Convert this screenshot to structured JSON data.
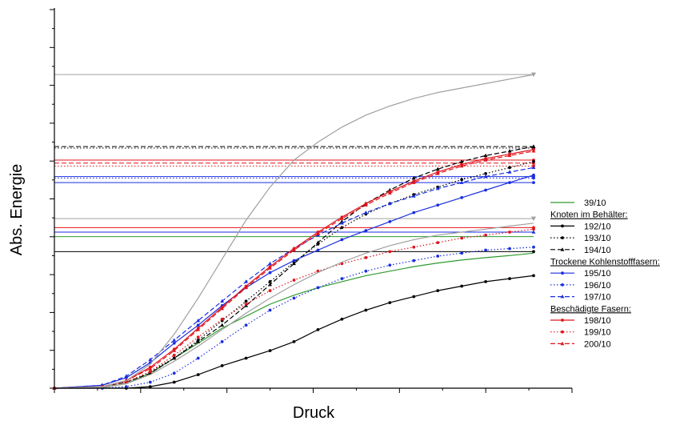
{
  "chart_data": {
    "type": "line",
    "xlabel": "Druck",
    "ylabel": "Abs. Energie",
    "xlim": [
      0,
      1
    ],
    "ylim": [
      0,
      1
    ],
    "x_tick_count": 13,
    "y_tick_count": 21,
    "tick_labels_shown": false,
    "grid": false,
    "legend_position": "right",
    "legend": [
      {
        "kind": "series",
        "label": "39/10",
        "series": 0
      },
      {
        "kind": "heading",
        "label": "Knoten im Behälter:"
      },
      {
        "kind": "series",
        "label": "192/10",
        "series": 1
      },
      {
        "kind": "series",
        "label": "193/10",
        "series": 2
      },
      {
        "kind": "series",
        "label": "194/10",
        "series": 3
      },
      {
        "kind": "heading",
        "label": "Trockene Kohlenstofffasern:"
      },
      {
        "kind": "series",
        "label": "195/10",
        "series": 4
      },
      {
        "kind": "series",
        "label": "196/10",
        "series": 5
      },
      {
        "kind": "series",
        "label": "197/10",
        "series": 6
      },
      {
        "kind": "heading",
        "label": "Beschädigte Fasern:"
      },
      {
        "kind": "series",
        "label": "198/10",
        "series": 7
      },
      {
        "kind": "series",
        "label": "199/10",
        "series": 8
      },
      {
        "kind": "series",
        "label": "200/10",
        "series": 9
      }
    ],
    "series": [
      {
        "name": "39/10",
        "color": "#2e9a2e",
        "dash": "solid",
        "marker": "none",
        "points": [
          [
            0.0,
            0.0
          ],
          [
            0.1,
            0.002
          ],
          [
            0.15,
            0.015
          ],
          [
            0.2,
            0.05
          ],
          [
            0.25,
            0.1
          ],
          [
            0.3,
            0.15
          ],
          [
            0.35,
            0.2
          ],
          [
            0.4,
            0.24
          ],
          [
            0.45,
            0.28
          ],
          [
            0.5,
            0.31
          ],
          [
            0.55,
            0.335
          ],
          [
            0.6,
            0.355
          ],
          [
            0.65,
            0.375
          ],
          [
            0.7,
            0.39
          ],
          [
            0.75,
            0.405
          ],
          [
            0.8,
            0.417
          ],
          [
            0.85,
            0.427
          ],
          [
            0.9,
            0.435
          ],
          [
            0.95,
            0.442
          ],
          [
            1.0,
            0.45
          ]
        ]
      },
      {
        "name": "192/10",
        "color": "#000000",
        "dash": "solid",
        "marker": "circle",
        "points": [
          [
            0.0,
            0.0
          ],
          [
            0.15,
            0.0
          ],
          [
            0.2,
            0.005
          ],
          [
            0.25,
            0.02
          ],
          [
            0.3,
            0.045
          ],
          [
            0.35,
            0.075
          ],
          [
            0.4,
            0.1
          ],
          [
            0.45,
            0.125
          ],
          [
            0.5,
            0.155
          ],
          [
            0.55,
            0.195
          ],
          [
            0.6,
            0.23
          ],
          [
            0.65,
            0.26
          ],
          [
            0.7,
            0.285
          ],
          [
            0.75,
            0.305
          ],
          [
            0.8,
            0.325
          ],
          [
            0.85,
            0.34
          ],
          [
            0.9,
            0.355
          ],
          [
            0.95,
            0.365
          ],
          [
            1.0,
            0.375
          ]
        ]
      },
      {
        "name": "193/10",
        "color": "#000000",
        "dash": "dotted",
        "marker": "circle",
        "points": [
          [
            0.0,
            0.0
          ],
          [
            0.1,
            0.005
          ],
          [
            0.15,
            0.02
          ],
          [
            0.2,
            0.055
          ],
          [
            0.25,
            0.1
          ],
          [
            0.3,
            0.16
          ],
          [
            0.35,
            0.225
          ],
          [
            0.4,
            0.29
          ],
          [
            0.45,
            0.355
          ],
          [
            0.5,
            0.42
          ],
          [
            0.55,
            0.48
          ],
          [
            0.6,
            0.535
          ],
          [
            0.65,
            0.58
          ],
          [
            0.7,
            0.615
          ],
          [
            0.75,
            0.645
          ],
          [
            0.8,
            0.67
          ],
          [
            0.85,
            0.695
          ],
          [
            0.9,
            0.715
          ],
          [
            0.95,
            0.735
          ],
          [
            1.0,
            0.755
          ]
        ]
      },
      {
        "name": "194/10",
        "color": "#000000",
        "dash": "dashed",
        "marker": "triangle",
        "points": [
          [
            0.0,
            0.0
          ],
          [
            0.1,
            0.005
          ],
          [
            0.15,
            0.02
          ],
          [
            0.2,
            0.05
          ],
          [
            0.25,
            0.1
          ],
          [
            0.3,
            0.155
          ],
          [
            0.35,
            0.21
          ],
          [
            0.4,
            0.275
          ],
          [
            0.45,
            0.345
          ],
          [
            0.5,
            0.415
          ],
          [
            0.55,
            0.485
          ],
          [
            0.6,
            0.555
          ],
          [
            0.65,
            0.615
          ],
          [
            0.7,
            0.66
          ],
          [
            0.75,
            0.7
          ],
          [
            0.8,
            0.73
          ],
          [
            0.85,
            0.755
          ],
          [
            0.9,
            0.775
          ],
          [
            0.95,
            0.79
          ],
          [
            1.0,
            0.805
          ]
        ]
      },
      {
        "name": "195/10",
        "color": "#1a2ee0",
        "dash": "solid",
        "marker": "circle",
        "points": [
          [
            0.0,
            0.0
          ],
          [
            0.1,
            0.01
          ],
          [
            0.15,
            0.035
          ],
          [
            0.2,
            0.085
          ],
          [
            0.25,
            0.15
          ],
          [
            0.3,
            0.21
          ],
          [
            0.35,
            0.275
          ],
          [
            0.4,
            0.335
          ],
          [
            0.45,
            0.385
          ],
          [
            0.5,
            0.425
          ],
          [
            0.55,
            0.46
          ],
          [
            0.6,
            0.495
          ],
          [
            0.65,
            0.525
          ],
          [
            0.7,
            0.555
          ],
          [
            0.75,
            0.585
          ],
          [
            0.8,
            0.61
          ],
          [
            0.85,
            0.635
          ],
          [
            0.9,
            0.66
          ],
          [
            0.95,
            0.685
          ],
          [
            1.0,
            0.71
          ]
        ]
      },
      {
        "name": "196/10",
        "color": "#1a2ee0",
        "dash": "dotted",
        "marker": "circle",
        "points": [
          [
            0.0,
            0.0
          ],
          [
            0.1,
            0.0
          ],
          [
            0.15,
            0.005
          ],
          [
            0.2,
            0.02
          ],
          [
            0.25,
            0.05
          ],
          [
            0.3,
            0.1
          ],
          [
            0.35,
            0.155
          ],
          [
            0.4,
            0.21
          ],
          [
            0.45,
            0.26
          ],
          [
            0.5,
            0.3
          ],
          [
            0.55,
            0.335
          ],
          [
            0.6,
            0.365
          ],
          [
            0.65,
            0.39
          ],
          [
            0.7,
            0.41
          ],
          [
            0.75,
            0.425
          ],
          [
            0.8,
            0.44
          ],
          [
            0.85,
            0.45
          ],
          [
            0.9,
            0.46
          ],
          [
            0.95,
            0.465
          ],
          [
            1.0,
            0.47
          ]
        ]
      },
      {
        "name": "197/10",
        "color": "#1a2ee0",
        "dash": "dashed",
        "marker": "triangle",
        "points": [
          [
            0.0,
            0.0
          ],
          [
            0.1,
            0.01
          ],
          [
            0.15,
            0.04
          ],
          [
            0.2,
            0.095
          ],
          [
            0.25,
            0.16
          ],
          [
            0.3,
            0.225
          ],
          [
            0.35,
            0.29
          ],
          [
            0.4,
            0.355
          ],
          [
            0.45,
            0.415
          ],
          [
            0.5,
            0.465
          ],
          [
            0.55,
            0.51
          ],
          [
            0.6,
            0.55
          ],
          [
            0.65,
            0.585
          ],
          [
            0.7,
            0.615
          ],
          [
            0.75,
            0.64
          ],
          [
            0.8,
            0.665
          ],
          [
            0.85,
            0.685
          ],
          [
            0.9,
            0.705
          ],
          [
            0.95,
            0.72
          ],
          [
            1.0,
            0.735
          ]
        ]
      },
      {
        "name": "198/10",
        "color": "#e0141c",
        "dash": "solid",
        "marker": "circle",
        "points": [
          [
            0.0,
            0.0
          ],
          [
            0.1,
            0.005
          ],
          [
            0.15,
            0.025
          ],
          [
            0.2,
            0.07
          ],
          [
            0.25,
            0.13
          ],
          [
            0.3,
            0.2
          ],
          [
            0.35,
            0.27
          ],
          [
            0.4,
            0.34
          ],
          [
            0.45,
            0.405
          ],
          [
            0.5,
            0.465
          ],
          [
            0.55,
            0.52
          ],
          [
            0.6,
            0.57
          ],
          [
            0.65,
            0.615
          ],
          [
            0.7,
            0.655
          ],
          [
            0.75,
            0.69
          ],
          [
            0.8,
            0.72
          ],
          [
            0.85,
            0.745
          ],
          [
            0.9,
            0.765
          ],
          [
            0.95,
            0.78
          ],
          [
            1.0,
            0.795
          ]
        ]
      },
      {
        "name": "199/10",
        "color": "#e0141c",
        "dash": "dotted",
        "marker": "circle",
        "points": [
          [
            0.0,
            0.0
          ],
          [
            0.1,
            0.005
          ],
          [
            0.15,
            0.02
          ],
          [
            0.2,
            0.055
          ],
          [
            0.25,
            0.11
          ],
          [
            0.3,
            0.17
          ],
          [
            0.35,
            0.23
          ],
          [
            0.4,
            0.28
          ],
          [
            0.45,
            0.325
          ],
          [
            0.5,
            0.36
          ],
          [
            0.55,
            0.39
          ],
          [
            0.6,
            0.415
          ],
          [
            0.65,
            0.435
          ],
          [
            0.7,
            0.455
          ],
          [
            0.75,
            0.47
          ],
          [
            0.8,
            0.485
          ],
          [
            0.85,
            0.5
          ],
          [
            0.9,
            0.51
          ],
          [
            0.95,
            0.52
          ],
          [
            1.0,
            0.53
          ]
        ]
      },
      {
        "name": "200/10",
        "color": "#e0141c",
        "dash": "dashed",
        "marker": "triangle",
        "points": [
          [
            0.0,
            0.0
          ],
          [
            0.1,
            0.005
          ],
          [
            0.15,
            0.025
          ],
          [
            0.2,
            0.065
          ],
          [
            0.25,
            0.125
          ],
          [
            0.3,
            0.195
          ],
          [
            0.35,
            0.265
          ],
          [
            0.4,
            0.335
          ],
          [
            0.45,
            0.4
          ],
          [
            0.5,
            0.46
          ],
          [
            0.55,
            0.515
          ],
          [
            0.6,
            0.565
          ],
          [
            0.65,
            0.61
          ],
          [
            0.7,
            0.65
          ],
          [
            0.75,
            0.685
          ],
          [
            0.8,
            0.715
          ],
          [
            0.85,
            0.74
          ],
          [
            0.9,
            0.76
          ],
          [
            0.95,
            0.775
          ],
          [
            1.0,
            0.79
          ]
        ]
      },
      {
        "name": "",
        "color": "#a0a0a0",
        "dash": "solid",
        "marker": "none",
        "points": [
          [
            0.0,
            0.0
          ],
          [
            0.1,
            0.005
          ],
          [
            0.15,
            0.025
          ],
          [
            0.2,
            0.08
          ],
          [
            0.25,
            0.18
          ],
          [
            0.3,
            0.3
          ],
          [
            0.35,
            0.43
          ],
          [
            0.4,
            0.56
          ],
          [
            0.45,
            0.67
          ],
          [
            0.5,
            0.76
          ],
          [
            0.55,
            0.82
          ],
          [
            0.6,
            0.87
          ],
          [
            0.65,
            0.91
          ],
          [
            0.7,
            0.94
          ],
          [
            0.75,
            0.965
          ],
          [
            0.8,
            0.985
          ],
          [
            0.85,
            1.0
          ],
          [
            0.9,
            1.015
          ],
          [
            0.95,
            1.03
          ],
          [
            1.0,
            1.045
          ]
        ]
      },
      {
        "name": "",
        "color": "#a0a0a0",
        "dash": "solid",
        "marker": "none",
        "points": [
          [
            0.0,
            0.0
          ],
          [
            0.1,
            0.003
          ],
          [
            0.15,
            0.015
          ],
          [
            0.2,
            0.045
          ],
          [
            0.25,
            0.09
          ],
          [
            0.3,
            0.14
          ],
          [
            0.35,
            0.195
          ],
          [
            0.4,
            0.25
          ],
          [
            0.45,
            0.3
          ],
          [
            0.5,
            0.345
          ],
          [
            0.55,
            0.385
          ],
          [
            0.6,
            0.42
          ],
          [
            0.65,
            0.45
          ],
          [
            0.7,
            0.475
          ],
          [
            0.75,
            0.495
          ],
          [
            0.8,
            0.51
          ],
          [
            0.85,
            0.52
          ],
          [
            0.9,
            0.53
          ],
          [
            0.95,
            0.54
          ],
          [
            1.0,
            0.55
          ]
        ]
      }
    ],
    "reference_lines": [
      {
        "color": "#a0a0a0",
        "dash": "solid",
        "y": 1.045,
        "marker": "triangle-down"
      },
      {
        "color": "#000000",
        "dash": "dashed",
        "y": 0.805,
        "marker": "triangle"
      },
      {
        "color": "#000000",
        "dash": "dotted",
        "y": 0.8,
        "marker": "circle"
      },
      {
        "color": "#e0141c",
        "dash": "solid",
        "y": 0.76,
        "marker": "circle"
      },
      {
        "color": "#e0141c",
        "dash": "dashed",
        "y": 0.75,
        "marker": "triangle"
      },
      {
        "color": "#e0141c",
        "dash": "dotted",
        "y": 0.74,
        "marker": "circle"
      },
      {
        "color": "#1a2ee0",
        "dash": "solid",
        "y": 0.705,
        "marker": "circle"
      },
      {
        "color": "#1a2ee0",
        "dash": "dotted",
        "y": 0.7,
        "marker": "circle"
      },
      {
        "color": "#1a2ee0",
        "dash": "solid",
        "y": 0.685,
        "marker": "circle"
      },
      {
        "color": "#a0a0a0",
        "dash": "solid",
        "y": 0.565,
        "marker": "triangle-down"
      },
      {
        "color": "#e0141c",
        "dash": "solid",
        "y": 0.535,
        "marker": "circle"
      },
      {
        "color": "#1a2ee0",
        "dash": "solid",
        "y": 0.52,
        "marker": "triangle"
      },
      {
        "color": "#2e9a2e",
        "dash": "solid",
        "y": 0.505,
        "marker": "none"
      },
      {
        "color": "#000000",
        "dash": "solid",
        "y": 0.455,
        "marker": "circle"
      }
    ]
  }
}
